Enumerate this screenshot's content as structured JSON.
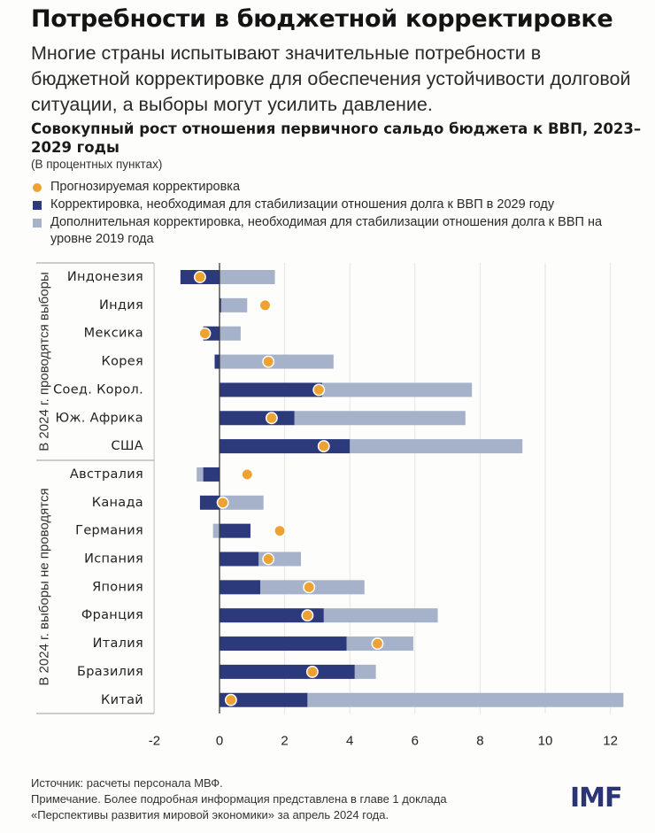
{
  "header": {
    "title": "Потребности в бюджетной корректировке",
    "subtitle": "Многие страны испытывают значительные потребности в бюджетной корректировке для обеспечения устойчивости долговой ситуации, а выборы могут усилить давление."
  },
  "colors": {
    "dark": "#2c3a7c",
    "light": "#a6b2c9",
    "dot": "#eea232",
    "axis": "#3a3a3a",
    "grid": "#e4e4e4",
    "panel_line": "#9a9a9a"
  },
  "legend": [
    {
      "label": "Прогнозируемая корректировка",
      "kind": "dot",
      "color": "#eea232"
    },
    {
      "label": "Корректировка, необходимая для стабилизации отношения долга к ВВП в 2029 году",
      "kind": "square",
      "color": "#2c3a7c"
    },
    {
      "label": "Дополнительная корректировка, необходимая для стабилизации отношения долга к ВВП на уровне 2019 года",
      "kind": "square",
      "color": "#a6b2c9"
    }
  ],
  "footer": {
    "source": "Источник: расчеты персонала МВФ.",
    "note_line1": "Примечание. Более подробная информация представлена в главе 1 доклада",
    "note_line2": "«Перспективы развития мировой экономики» за апрель 2024 года.",
    "logo": "IMF"
  },
  "chart_data": {
    "type": "bar",
    "orientation": "horizontal",
    "stacked": true,
    "title": "Совокупный рост отношения первичного сальдо бюджета к ВВП, 2023–2029 годы",
    "units": "(В процентных пунктах)",
    "xlabel": "",
    "ylabel": "",
    "xlim": [
      -2,
      12.5
    ],
    "xticks": [
      -2,
      0,
      2,
      4,
      6,
      8,
      10,
      12
    ],
    "xtick_labels": [
      "-2",
      "0",
      "2",
      "4",
      "6",
      "8",
      "10",
      "12"
    ],
    "grid": true,
    "legend_position": "top",
    "groups": [
      {
        "label": "В 2024 г. проводятся выборы",
        "categories": [
          "Индонезия",
          "Индия",
          "Мексика",
          "Корея",
          "Соед. Корол.",
          "Юж. Африка",
          "США"
        ]
      },
      {
        "label": "В 2024 г. выборы не проводятся",
        "categories": [
          "Австралия",
          "Канада",
          "Германия",
          "Испания",
          "Япония",
          "Франция",
          "Италия",
          "Бразилия",
          "Китай"
        ]
      }
    ],
    "categories": [
      "Индонезия",
      "Индия",
      "Мексика",
      "Корея",
      "Соед. Корол.",
      "Юж. Африка",
      "США",
      "Австралия",
      "Канада",
      "Германия",
      "Испания",
      "Япония",
      "Франция",
      "Италия",
      "Бразилия",
      "Китай"
    ],
    "series": [
      {
        "name": "Корректировка, необходимая для стабилизации отношения долга к ВВП в 2029 году",
        "kind": "bar",
        "values": [
          -1.2,
          0.05,
          -0.5,
          -0.15,
          3.15,
          2.3,
          4.0,
          -0.5,
          -0.6,
          0.95,
          1.2,
          1.25,
          3.2,
          3.9,
          4.15,
          2.7
        ]
      },
      {
        "name": "Дополнительная корректировка, необходимая для стабилизации отношения долга к ВВП на уровне 2019 года",
        "kind": "bar",
        "values": [
          1.7,
          0.8,
          0.65,
          3.5,
          4.6,
          5.25,
          5.3,
          -0.2,
          1.35,
          -0.2,
          1.3,
          3.2,
          3.5,
          2.05,
          0.65,
          9.7
        ]
      },
      {
        "name": "Прогнозируемая корректировка",
        "kind": "dot",
        "values": [
          -0.6,
          1.4,
          -0.45,
          1.5,
          3.05,
          1.6,
          3.2,
          0.85,
          0.1,
          1.85,
          1.5,
          2.75,
          2.7,
          4.85,
          2.85,
          0.35
        ]
      }
    ]
  }
}
